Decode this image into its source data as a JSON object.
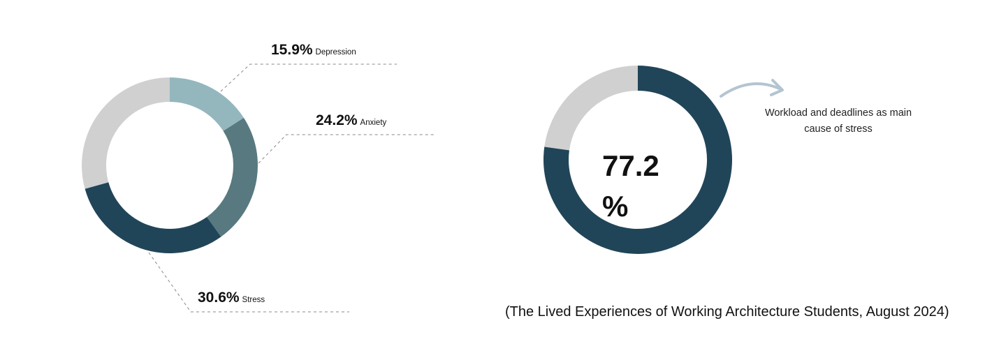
{
  "chart_data": [
    {
      "type": "pie",
      "variant": "donut",
      "start": "top",
      "direction": "clockwise",
      "slices": [
        {
          "name": "Depression",
          "value": 15.9,
          "label": "15.9%",
          "color": "#93b7bd"
        },
        {
          "name": "Anxiety",
          "value": 24.2,
          "label": "24.2%",
          "color": "#587980"
        },
        {
          "name": "Stress",
          "value": 30.6,
          "label": "30.6%",
          "color": "#214558"
        }
      ],
      "remainder_color": "#d0d0d0"
    },
    {
      "type": "pie",
      "variant": "donut",
      "start": "top",
      "direction": "clockwise",
      "value": 77.2,
      "center_value": "77.2",
      "center_unit": "%",
      "color": "#214558",
      "remainder_color": "#d0d0d0",
      "annotation": "Workload and deadlines as main cause of stress",
      "arrow_color": "#b3c5d0"
    }
  ],
  "caption": "(The Lived Experiences of Working Architecture Students, August 2024)"
}
